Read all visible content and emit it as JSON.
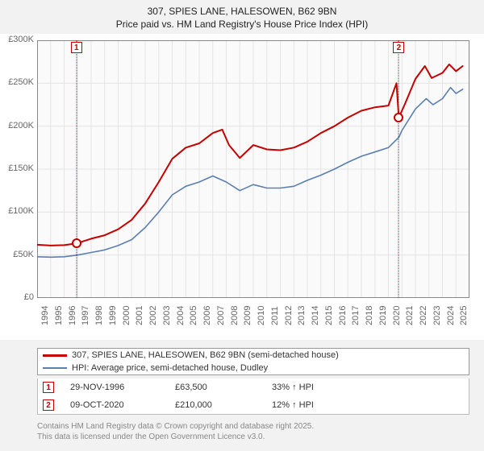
{
  "title_line1": "307, SPIES LANE, HALESOWEN, B62 9BN",
  "title_line2": "Price paid vs. HM Land Registry's House Price Index (HPI)",
  "chart": {
    "type": "line",
    "background_color": "#fafafa",
    "outer_background": "#f2f2f2",
    "grid_color": "#e4e4e4",
    "axis_color": "#888888",
    "tick_font_size": 11,
    "x": {
      "min": 1994,
      "max": 2026,
      "ticks": [
        1994,
        1995,
        1996,
        1997,
        1998,
        1999,
        2000,
        2001,
        2002,
        2003,
        2004,
        2005,
        2006,
        2007,
        2008,
        2009,
        2010,
        2011,
        2012,
        2013,
        2014,
        2015,
        2016,
        2017,
        2018,
        2019,
        2020,
        2021,
        2022,
        2023,
        2024,
        2025
      ]
    },
    "y": {
      "min": 0,
      "max": 300000,
      "ticks": [
        0,
        50000,
        100000,
        150000,
        200000,
        250000,
        300000
      ],
      "labels": [
        "£0",
        "£50K",
        "£100K",
        "£150K",
        "£200K",
        "£250K",
        "£300K"
      ]
    },
    "series": [
      {
        "id": "subject",
        "label": "307, SPIES LANE, HALESOWEN, B62 9BN (semi-detached house)",
        "color": "#c40000",
        "width": 2,
        "points": [
          [
            1994,
            62000
          ],
          [
            1995,
            61000
          ],
          [
            1996,
            61500
          ],
          [
            1996.91,
            63500
          ],
          [
            1998,
            69000
          ],
          [
            1999,
            73000
          ],
          [
            2000,
            80000
          ],
          [
            2001,
            91000
          ],
          [
            2002,
            110000
          ],
          [
            2003,
            135000
          ],
          [
            2004,
            162000
          ],
          [
            2005,
            175000
          ],
          [
            2006,
            180000
          ],
          [
            2007,
            192000
          ],
          [
            2007.7,
            196000
          ],
          [
            2008.2,
            178000
          ],
          [
            2009,
            163000
          ],
          [
            2010,
            178000
          ],
          [
            2011,
            173000
          ],
          [
            2012,
            172000
          ],
          [
            2013,
            175000
          ],
          [
            2014,
            182000
          ],
          [
            2015,
            192000
          ],
          [
            2016,
            200000
          ],
          [
            2017,
            210000
          ],
          [
            2018,
            218000
          ],
          [
            2019,
            222000
          ],
          [
            2020,
            224000
          ],
          [
            2020.6,
            250000
          ],
          [
            2020.77,
            210000
          ],
          [
            2021.2,
            225000
          ],
          [
            2022,
            255000
          ],
          [
            2022.7,
            270000
          ],
          [
            2023.2,
            256000
          ],
          [
            2024,
            262000
          ],
          [
            2024.5,
            272000
          ],
          [
            2025,
            264000
          ],
          [
            2025.5,
            270000
          ]
        ]
      },
      {
        "id": "hpi",
        "label": "HPI: Average price, semi-detached house, Dudley",
        "color": "#5b7fb0",
        "width": 1.6,
        "points": [
          [
            1994,
            48000
          ],
          [
            1995,
            47500
          ],
          [
            1996,
            48000
          ],
          [
            1997,
            50000
          ],
          [
            1998,
            53000
          ],
          [
            1999,
            56000
          ],
          [
            2000,
            61000
          ],
          [
            2001,
            68000
          ],
          [
            2002,
            82000
          ],
          [
            2003,
            100000
          ],
          [
            2004,
            120000
          ],
          [
            2005,
            130000
          ],
          [
            2006,
            135000
          ],
          [
            2007,
            142000
          ],
          [
            2008,
            135000
          ],
          [
            2009,
            125000
          ],
          [
            2010,
            132000
          ],
          [
            2011,
            128000
          ],
          [
            2012,
            128000
          ],
          [
            2013,
            130000
          ],
          [
            2014,
            137000
          ],
          [
            2015,
            143000
          ],
          [
            2016,
            150000
          ],
          [
            2017,
            158000
          ],
          [
            2018,
            165000
          ],
          [
            2019,
            170000
          ],
          [
            2020,
            175000
          ],
          [
            2020.77,
            187000
          ],
          [
            2021,
            195000
          ],
          [
            2022,
            220000
          ],
          [
            2022.8,
            232000
          ],
          [
            2023.3,
            225000
          ],
          [
            2024,
            232000
          ],
          [
            2024.6,
            245000
          ],
          [
            2025,
            238000
          ],
          [
            2025.5,
            243000
          ]
        ]
      }
    ],
    "markers": [
      {
        "n": "1",
        "x": 1996.91,
        "y": 63500,
        "color": "#c40000",
        "date": "29-NOV-1996",
        "price": "£63,500",
        "delta": "33% ↑ HPI"
      },
      {
        "n": "2",
        "x": 2020.77,
        "y": 210000,
        "color": "#c40000",
        "date": "09-OCT-2020",
        "price": "£210,000",
        "delta": "12% ↑ HPI"
      }
    ]
  },
  "legend": {
    "border_color": "#999999",
    "items": [
      {
        "color": "#c40000",
        "width": 3,
        "label": "307, SPIES LANE, HALESOWEN, B62 9BN (semi-detached house)"
      },
      {
        "color": "#5b7fb0",
        "width": 2,
        "label": "HPI: Average price, semi-detached house, Dudley"
      }
    ]
  },
  "footer_line1": "Contains HM Land Registry data © Crown copyright and database right 2025.",
  "footer_line2": "This data is licensed under the Open Government Licence v3.0."
}
